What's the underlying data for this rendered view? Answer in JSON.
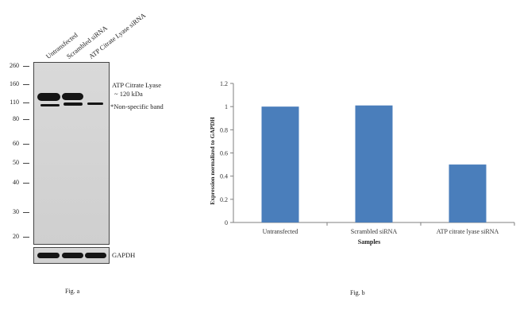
{
  "figure_a": {
    "lanes": [
      "Untransfected",
      "Scrambled siRNA",
      "ATP Citrate Lyase siRNA"
    ],
    "mw_markers": [
      "260",
      "160",
      "110",
      "80",
      "60",
      "50",
      "40",
      "30",
      "20"
    ],
    "annotation_target_line1": "ATP Citrate Lyase",
    "annotation_target_line2": "~ 120 kDa",
    "annotation_nonspecific": "*Non-specific band",
    "loading_control": "GAPDH",
    "caption": "Fig. a"
  },
  "figure_b": {
    "caption": "Fig. b"
  },
  "chart_data": {
    "type": "bar",
    "categories": [
      "Untransfected",
      "Scrambled siRNA",
      "ATP citrate lyase siRNA"
    ],
    "values": [
      1.0,
      1.01,
      0.5
    ],
    "xlabel": "Samples",
    "ylabel": "Expression normalized to GAPDH",
    "ylim": [
      0,
      1.2
    ],
    "yticks": [
      "0",
      "0.2",
      "0.4",
      "0.6",
      "0.8",
      "1",
      "1.2"
    ],
    "bar_color": "#4a7ebb",
    "grid": false
  }
}
